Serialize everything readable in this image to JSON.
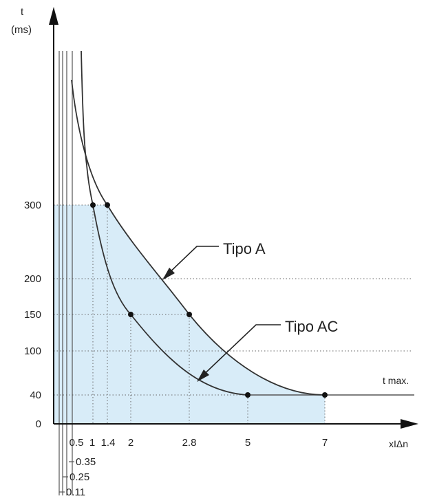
{
  "chart_data": {
    "type": "line",
    "y_axis": {
      "label": "t",
      "unit": "(ms)",
      "ticks": [
        0,
        40,
        100,
        150,
        200,
        300
      ]
    },
    "x_axis": {
      "label": "xIΔn",
      "ticks_top": [
        "0.5",
        "1",
        "1.4",
        "2",
        "2.8",
        "5",
        "7"
      ],
      "ticks_bottom": [
        "0.35",
        "0.25",
        "0.11"
      ]
    },
    "series": [
      {
        "name": "Tipo A",
        "points": [
          [
            1.4,
            300
          ],
          [
            2.8,
            150
          ],
          [
            7,
            40
          ]
        ]
      },
      {
        "name": "Tipo AC",
        "points": [
          [
            1,
            300
          ],
          [
            2,
            150
          ],
          [
            5,
            40
          ]
        ]
      }
    ],
    "t_max_label": "t max.",
    "t_max_value": 40,
    "shaded_region": "area under curves, t ≤ 300 ms",
    "colors": {
      "shade": "#d8ecf8",
      "curve": "#333333",
      "grid": "#6a6a6a"
    }
  }
}
